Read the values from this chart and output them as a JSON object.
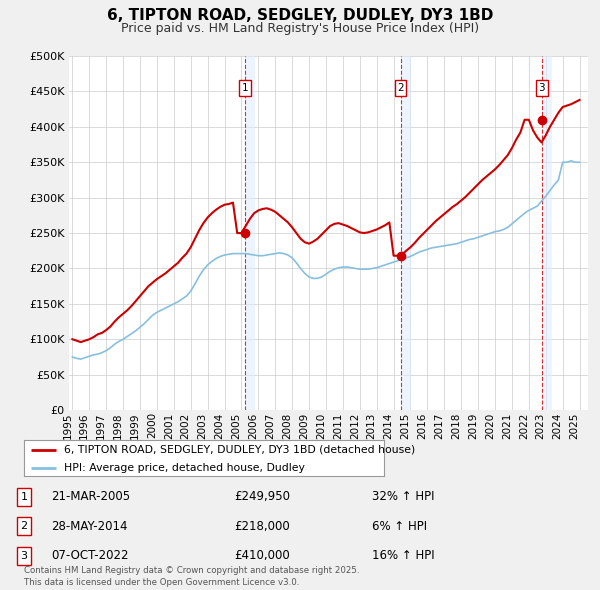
{
  "title": "6, TIPTON ROAD, SEDGLEY, DUDLEY, DY3 1BD",
  "subtitle": "Price paid vs. HM Land Registry's House Price Index (HPI)",
  "background_color": "#f0f0f0",
  "plot_background": "#ffffff",
  "grid_color": "#cccccc",
  "red_line_color": "#cc0000",
  "blue_line_color": "#87bfde",
  "sale_marker_color": "#cc0000",
  "vline_color": "#cc0000",
  "ylim": [
    0,
    500000
  ],
  "yticks": [
    0,
    50000,
    100000,
    150000,
    200000,
    250000,
    300000,
    350000,
    400000,
    450000,
    500000
  ],
  "ytick_labels": [
    "£0",
    "£50K",
    "£100K",
    "£150K",
    "£200K",
    "£250K",
    "£300K",
    "£350K",
    "£400K",
    "£450K",
    "£500K"
  ],
  "xlim_start": 1994.8,
  "xlim_end": 2025.5,
  "xticks": [
    1995,
    1996,
    1997,
    1998,
    1999,
    2000,
    2001,
    2002,
    2003,
    2004,
    2005,
    2006,
    2007,
    2008,
    2009,
    2010,
    2011,
    2012,
    2013,
    2014,
    2015,
    2016,
    2017,
    2018,
    2019,
    2020,
    2021,
    2022,
    2023,
    2024,
    2025
  ],
  "legend_label_red": "6, TIPTON ROAD, SEDGLEY, DUDLEY, DY3 1BD (detached house)",
  "legend_label_blue": "HPI: Average price, detached house, Dudley",
  "sale_events": [
    {
      "label": "1",
      "date_decimal": 2005.22,
      "price": 249950,
      "date_str": "21-MAR-2005",
      "price_str": "£249,950",
      "hpi_str": "32% ↑ HPI"
    },
    {
      "label": "2",
      "date_decimal": 2014.41,
      "price": 218000,
      "date_str": "28-MAY-2014",
      "price_str": "£218,000",
      "hpi_str": "6% ↑ HPI"
    },
    {
      "label": "3",
      "date_decimal": 2022.77,
      "price": 410000,
      "date_str": "07-OCT-2022",
      "price_str": "£410,000",
      "hpi_str": "16% ↑ HPI"
    }
  ],
  "footer_text": "Contains HM Land Registry data © Crown copyright and database right 2025.\nThis data is licensed under the Open Government Licence v3.0.",
  "hpi_data_x": [
    1995.0,
    1995.25,
    1995.5,
    1995.75,
    1996.0,
    1996.25,
    1996.5,
    1996.75,
    1997.0,
    1997.25,
    1997.5,
    1997.75,
    1998.0,
    1998.25,
    1998.5,
    1998.75,
    1999.0,
    1999.25,
    1999.5,
    1999.75,
    2000.0,
    2000.25,
    2000.5,
    2000.75,
    2001.0,
    2001.25,
    2001.5,
    2001.75,
    2002.0,
    2002.25,
    2002.5,
    2002.75,
    2003.0,
    2003.25,
    2003.5,
    2003.75,
    2004.0,
    2004.25,
    2004.5,
    2004.75,
    2005.0,
    2005.25,
    2005.5,
    2005.75,
    2006.0,
    2006.25,
    2006.5,
    2006.75,
    2007.0,
    2007.25,
    2007.5,
    2007.75,
    2008.0,
    2008.25,
    2008.5,
    2008.75,
    2009.0,
    2009.25,
    2009.5,
    2009.75,
    2010.0,
    2010.25,
    2010.5,
    2010.75,
    2011.0,
    2011.25,
    2011.5,
    2011.75,
    2012.0,
    2012.25,
    2012.5,
    2012.75,
    2013.0,
    2013.25,
    2013.5,
    2013.75,
    2014.0,
    2014.25,
    2014.5,
    2014.75,
    2015.0,
    2015.25,
    2015.5,
    2015.75,
    2016.0,
    2016.25,
    2016.5,
    2016.75,
    2017.0,
    2017.25,
    2017.5,
    2017.75,
    2018.0,
    2018.25,
    2018.5,
    2018.75,
    2019.0,
    2019.25,
    2019.5,
    2019.75,
    2020.0,
    2020.25,
    2020.5,
    2020.75,
    2021.0,
    2021.25,
    2021.5,
    2021.75,
    2022.0,
    2022.25,
    2022.5,
    2022.75,
    2023.0,
    2023.25,
    2023.5,
    2023.75,
    2024.0,
    2024.25,
    2024.5,
    2024.75,
    2025.0
  ],
  "hpi_data_y": [
    75000,
    73000,
    72000,
    74000,
    76000,
    78000,
    79000,
    81000,
    84000,
    88000,
    93000,
    97000,
    100000,
    104000,
    108000,
    112000,
    117000,
    122000,
    128000,
    134000,
    138000,
    141000,
    144000,
    147000,
    150000,
    153000,
    157000,
    161000,
    168000,
    178000,
    189000,
    198000,
    205000,
    210000,
    214000,
    217000,
    219000,
    220000,
    221000,
    221000,
    221000,
    221000,
    220000,
    219000,
    218000,
    218000,
    219000,
    220000,
    221000,
    222000,
    221000,
    219000,
    215000,
    208000,
    200000,
    193000,
    188000,
    186000,
    186000,
    188000,
    192000,
    196000,
    199000,
    201000,
    202000,
    202000,
    201000,
    200000,
    199000,
    199000,
    199000,
    200000,
    201000,
    203000,
    205000,
    207000,
    209000,
    211000,
    213000,
    215000,
    217000,
    220000,
    223000,
    225000,
    227000,
    229000,
    230000,
    231000,
    232000,
    233000,
    234000,
    235000,
    237000,
    239000,
    241000,
    242000,
    244000,
    246000,
    248000,
    250000,
    252000,
    253000,
    255000,
    258000,
    263000,
    268000,
    273000,
    278000,
    282000,
    285000,
    288000,
    295000,
    302000,
    310000,
    318000,
    325000,
    350000,
    350000,
    352000,
    350000,
    350000
  ],
  "red_data_x": [
    1995.0,
    1995.25,
    1995.5,
    1995.75,
    1996.0,
    1996.25,
    1996.5,
    1996.75,
    1997.0,
    1997.25,
    1997.5,
    1997.75,
    1998.0,
    1998.25,
    1998.5,
    1998.75,
    1999.0,
    1999.25,
    1999.5,
    1999.75,
    2000.0,
    2000.25,
    2000.5,
    2000.75,
    2001.0,
    2001.25,
    2001.5,
    2001.75,
    2002.0,
    2002.25,
    2002.5,
    2002.75,
    2003.0,
    2003.25,
    2003.5,
    2003.75,
    2004.0,
    2004.25,
    2004.5,
    2004.75,
    2005.0,
    2005.25,
    2005.5,
    2005.75,
    2006.0,
    2006.25,
    2006.5,
    2006.75,
    2007.0,
    2007.25,
    2007.5,
    2007.75,
    2008.0,
    2008.25,
    2008.5,
    2008.75,
    2009.0,
    2009.25,
    2009.5,
    2009.75,
    2010.0,
    2010.25,
    2010.5,
    2010.75,
    2011.0,
    2011.25,
    2011.5,
    2011.75,
    2012.0,
    2012.25,
    2012.5,
    2012.75,
    2013.0,
    2013.25,
    2013.5,
    2013.75,
    2014.0,
    2014.25,
    2014.5,
    2014.75,
    2015.0,
    2015.25,
    2015.5,
    2015.75,
    2016.0,
    2016.25,
    2016.5,
    2016.75,
    2017.0,
    2017.25,
    2017.5,
    2017.75,
    2018.0,
    2018.25,
    2018.5,
    2018.75,
    2019.0,
    2019.25,
    2019.5,
    2019.75,
    2020.0,
    2020.25,
    2020.5,
    2020.75,
    2021.0,
    2021.25,
    2021.5,
    2021.75,
    2022.0,
    2022.25,
    2022.5,
    2022.75,
    2023.0,
    2023.25,
    2023.5,
    2023.75,
    2024.0,
    2024.25,
    2024.5,
    2024.75,
    2025.0
  ],
  "red_data_y": [
    100000,
    98000,
    96000,
    98000,
    100000,
    103000,
    107000,
    109000,
    113000,
    118000,
    125000,
    131000,
    136000,
    141000,
    147000,
    154000,
    161000,
    168000,
    175000,
    180000,
    185000,
    189000,
    193000,
    198000,
    203000,
    208000,
    215000,
    221000,
    230000,
    242000,
    254000,
    264000,
    272000,
    278000,
    283000,
    287000,
    290000,
    291000,
    293000,
    249950,
    249950,
    260000,
    270000,
    278000,
    282000,
    284000,
    285000,
    283000,
    280000,
    275000,
    270000,
    265000,
    258000,
    250000,
    242000,
    237000,
    235000,
    238000,
    242000,
    248000,
    254000,
    260000,
    263000,
    264000,
    262000,
    260000,
    257000,
    254000,
    251000,
    250000,
    251000,
    253000,
    255000,
    258000,
    261000,
    265000,
    218000,
    218000,
    220000,
    225000,
    230000,
    236000,
    243000,
    249000,
    255000,
    261000,
    267000,
    272000,
    277000,
    282000,
    287000,
    291000,
    296000,
    301000,
    307000,
    313000,
    319000,
    325000,
    330000,
    335000,
    340000,
    346000,
    353000,
    360000,
    370000,
    382000,
    392000,
    410000,
    410000,
    395000,
    385000,
    378000,
    388000,
    400000,
    410000,
    420000,
    428000,
    430000,
    432000,
    435000,
    438000
  ]
}
